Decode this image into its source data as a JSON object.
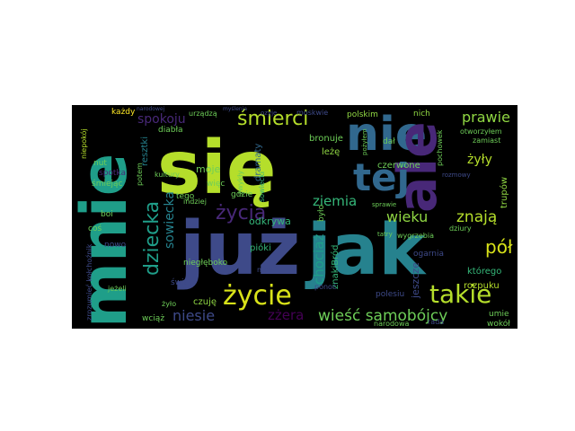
{
  "wordcloud": {
    "background": "#000000",
    "page_background": "#ffffff",
    "palette": {
      "purple": "#482878",
      "indigo": "#3e4a89",
      "blue": "#31688e",
      "teal": "#26828e",
      "green": "#1f9e89",
      "seagreen": "#35b779",
      "lime": "#6ece58",
      "yellowgreen": "#b5de2b",
      "yellow": "#fde725",
      "darkpurple": "#440154"
    },
    "words": [
      {
        "text": "się",
        "color": "#b5de2b"
      },
      {
        "text": "już",
        "color": "#3e4a89"
      },
      {
        "text": "jak",
        "color": "#26828e"
      },
      {
        "text": "mnie",
        "color": "#1f9e89"
      },
      {
        "text": "nie",
        "color": "#31688e"
      },
      {
        "text": "ale",
        "color": "#482878"
      },
      {
        "text": "tej",
        "color": "#31688e"
      },
      {
        "text": "życie",
        "color": "#d8e219"
      },
      {
        "text": "takie",
        "color": "#b5de2b"
      },
      {
        "text": "śmierci",
        "color": "#b5de2b"
      },
      {
        "text": "dziecka",
        "color": "#1f9e89"
      },
      {
        "text": "życia",
        "color": "#482878"
      },
      {
        "text": "wieść samobójcy",
        "color": "#6ece58"
      },
      {
        "text": "znają",
        "color": "#b5de2b"
      },
      {
        "text": "wieku",
        "color": "#90d743"
      },
      {
        "text": "pół",
        "color": "#d8e219"
      },
      {
        "text": "prawie",
        "color": "#90d743"
      },
      {
        "text": "spokoju",
        "color": "#482878"
      },
      {
        "text": "sowiecka",
        "color": "#26828e"
      },
      {
        "text": "niesie",
        "color": "#3e4a89"
      },
      {
        "text": "ziemia",
        "color": "#35b779"
      },
      {
        "text": "chociaż",
        "color": "#1f9e89"
      },
      {
        "text": "żyły",
        "color": "#b5de2b"
      },
      {
        "text": "zżera",
        "color": "#440154"
      },
      {
        "text": "moje",
        "color": "#6ece58"
      },
      {
        "text": "trupów",
        "color": "#90d743"
      },
      {
        "text": "znakiBród",
        "color": "#35b779"
      },
      {
        "text": "dramaty",
        "color": "#31688e"
      },
      {
        "text": "bronuje",
        "color": "#6ece58"
      },
      {
        "text": "polskim",
        "color": "#90d743"
      },
      {
        "text": "czerwone",
        "color": "#6ece58"
      },
      {
        "text": "odkrywa",
        "color": "#35b779"
      },
      {
        "text": "pióki",
        "color": "#35b779"
      },
      {
        "text": "leżę",
        "color": "#90d743"
      },
      {
        "text": "rozpuku",
        "color": "#b5de2b"
      },
      {
        "text": "którego",
        "color": "#35b779"
      },
      {
        "text": "jeszcze",
        "color": "#3e4a89"
      },
      {
        "text": "umie",
        "color": "#6ece58"
      },
      {
        "text": "wokół",
        "color": "#6ece58"
      },
      {
        "text": "czuję",
        "color": "#90d743"
      },
      {
        "text": "wciąż",
        "color": "#6ece58"
      },
      {
        "text": "resztki",
        "color": "#26828e"
      },
      {
        "text": "każdy",
        "color": "#fde725"
      },
      {
        "text": "niepokój",
        "color": "#b5de2b"
      },
      {
        "text": "spotka",
        "color": "#482878"
      },
      {
        "text": "śmiejąc",
        "color": "#6ece58"
      },
      {
        "text": "nut",
        "color": "#6ece58"
      },
      {
        "text": "boi",
        "color": "#6ece58"
      },
      {
        "text": "tego",
        "color": "#6ece58"
      },
      {
        "text": "gdzie",
        "color": "#6ece58"
      },
      {
        "text": "dał",
        "color": "#6ece58"
      },
      {
        "text": "nich",
        "color": "#90d743"
      },
      {
        "text": "zamiast",
        "color": "#6ece58"
      },
      {
        "text": "otworzyłem",
        "color": "#6ece58"
      },
      {
        "text": "pochowek",
        "color": "#6ece58"
      },
      {
        "text": "sowiecki",
        "color": "#35b779"
      },
      {
        "text": "kultury",
        "color": "#6ece58"
      },
      {
        "text": "diabła",
        "color": "#6ece58"
      },
      {
        "text": "urządzą",
        "color": "#6ece58"
      },
      {
        "text": "więc",
        "color": "#6ece58"
      },
      {
        "text": "było",
        "color": "#6ece58"
      },
      {
        "text": "dziury",
        "color": "#6ece58"
      },
      {
        "text": "ogarnia",
        "color": "#3e4a89"
      },
      {
        "text": "wygrzebia",
        "color": "#6ece58"
      },
      {
        "text": "polesiu",
        "color": "#3e4a89"
      },
      {
        "text": "narodowa",
        "color": "#6ece58"
      },
      {
        "text": "zrozumieć kołchoźnik",
        "color": "#3e4a89"
      },
      {
        "text": "nowo",
        "color": "#3e4a89"
      },
      {
        "text": "coś",
        "color": "#6ece58"
      },
      {
        "text": "jeżeli",
        "color": "#6ece58"
      },
      {
        "text": "żyło",
        "color": "#6ece58"
      },
      {
        "text": "świat",
        "color": "#3e4a89"
      },
      {
        "text": "niegłęboko",
        "color": "#6ece58"
      },
      {
        "text": "zwykły",
        "color": "#6ece58"
      },
      {
        "text": "mowi",
        "color": "#3e4a89"
      },
      {
        "text": "ponoć",
        "color": "#3e4a89"
      },
      {
        "text": "indziej",
        "color": "#6ece58"
      },
      {
        "text": "potem",
        "color": "#6ece58"
      },
      {
        "text": "rada",
        "color": "#3e4a89"
      },
      {
        "text": "sprawie",
        "color": "#6ece58"
      },
      {
        "text": "tatry",
        "color": "#6ece58"
      },
      {
        "text": "moskwie",
        "color": "#3e4a89"
      },
      {
        "text": "ozyje",
        "color": "#3e4a89"
      },
      {
        "text": "pożyłem",
        "color": "#6ece58"
      },
      {
        "text": "rozmowy",
        "color": "#3e4a89"
      },
      {
        "text": "narodowej",
        "color": "#3e4a89"
      },
      {
        "text": "myślenia",
        "color": "#3e4a89"
      }
    ]
  }
}
